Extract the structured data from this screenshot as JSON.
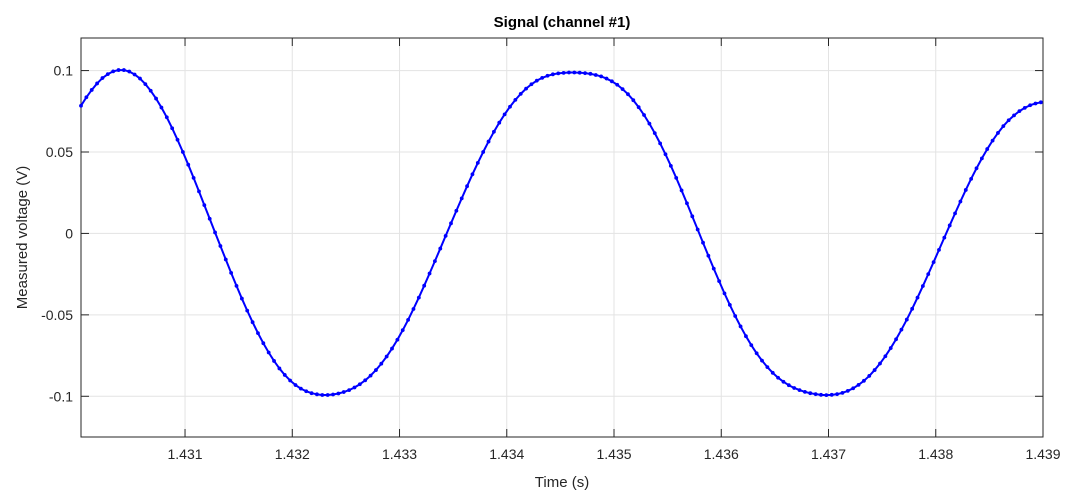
{
  "chart_data": {
    "type": "line",
    "title": "Signal (channel #1)",
    "xlabel": "Time (s)",
    "ylabel": "Measured voltage (V)",
    "xlim": [
      1.43003,
      1.439
    ],
    "ylim": [
      -0.125,
      0.12
    ],
    "xticks": [
      1.431,
      1.432,
      1.433,
      1.434,
      1.435,
      1.436,
      1.437,
      1.438,
      1.439
    ],
    "xtick_labels": [
      "1.431",
      "1.432",
      "1.433",
      "1.434",
      "1.435",
      "1.436",
      "1.437",
      "1.438",
      "1.439"
    ],
    "yticks": [
      0.1,
      0.05,
      0,
      -0.05,
      -0.1
    ],
    "ytick_labels": [
      "0.1",
      "0.05",
      "0",
      "-0.05",
      "-0.1"
    ],
    "grid": true,
    "marker": "dot",
    "line_color": "#0000ff",
    "series": [
      {
        "x": [
          1.43003,
          1.43008,
          1.43013,
          1.43018,
          1.43023,
          1.43028,
          1.43033,
          1.43038,
          1.43043,
          1.43048,
          1.43053,
          1.43058,
          1.43063,
          1.43068,
          1.43073,
          1.43078,
          1.43083,
          1.43088,
          1.43093,
          1.43098,
          1.43103,
          1.43108,
          1.43113,
          1.43118,
          1.43123,
          1.43128,
          1.43133,
          1.43138,
          1.43143,
          1.43148,
          1.43153,
          1.43158,
          1.43163,
          1.43168,
          1.43173,
          1.43178,
          1.43183,
          1.43188,
          1.43193,
          1.43198,
          1.43203,
          1.43208,
          1.43213,
          1.43218,
          1.43223,
          1.43228,
          1.43233,
          1.43238,
          1.43243,
          1.43248,
          1.43253,
          1.43258,
          1.43263,
          1.43268,
          1.43273,
          1.43278,
          1.43283,
          1.43288,
          1.43293,
          1.43298,
          1.43303,
          1.43308,
          1.43313,
          1.43318,
          1.43323,
          1.43328,
          1.43333,
          1.43338,
          1.43343,
          1.43348,
          1.43353,
          1.43358,
          1.43363,
          1.43368,
          1.43373,
          1.43378,
          1.43383,
          1.43388,
          1.43393,
          1.43398,
          1.43403,
          1.43408,
          1.43413,
          1.43418,
          1.43423,
          1.43428,
          1.43433,
          1.43438,
          1.43443,
          1.43448,
          1.43453,
          1.43458,
          1.43463,
          1.43468,
          1.43473,
          1.43478,
          1.43483,
          1.43488,
          1.43493,
          1.43498,
          1.43503,
          1.43508,
          1.43513,
          1.43518,
          1.43523,
          1.43528,
          1.43533,
          1.43538,
          1.43543,
          1.43548,
          1.43553,
          1.43558,
          1.43563,
          1.43568,
          1.43573,
          1.43578,
          1.43583,
          1.43588,
          1.43593,
          1.43598,
          1.43603,
          1.43608,
          1.43613,
          1.43618,
          1.43623,
          1.43628,
          1.43633,
          1.43638,
          1.43643,
          1.43648,
          1.43653,
          1.43658,
          1.43663,
          1.43668,
          1.43673,
          1.43678,
          1.43683,
          1.43688,
          1.43693,
          1.43698,
          1.43703,
          1.43708,
          1.43713,
          1.43718,
          1.43723,
          1.43728,
          1.43733,
          1.43738,
          1.43743,
          1.43748,
          1.43753,
          1.43758,
          1.43763,
          1.43768,
          1.43773,
          1.43778,
          1.43783,
          1.43788,
          1.43793,
          1.43798,
          1.43803,
          1.43808,
          1.43813,
          1.43818,
          1.43823,
          1.43828,
          1.43833,
          1.43838,
          1.43843,
          1.43848,
          1.43853,
          1.43858,
          1.43863,
          1.43868,
          1.43873,
          1.43878,
          1.43883,
          1.43888,
          1.43893,
          1.43898
        ],
        "y": [
          0.0784,
          0.0836,
          0.0881,
          0.0921,
          0.0954,
          0.0978,
          0.0995,
          0.1003,
          0.1003,
          0.0994,
          0.0976,
          0.0951,
          0.0917,
          0.0876,
          0.0828,
          0.0773,
          0.0713,
          0.0646,
          0.0575,
          0.05,
          0.0422,
          0.0341,
          0.0258,
          0.0174,
          0.009,
          0.0006,
          -0.0077,
          -0.016,
          -0.0242,
          -0.0322,
          -0.04,
          -0.0474,
          -0.0545,
          -0.0612,
          -0.0674,
          -0.0731,
          -0.0783,
          -0.0829,
          -0.0869,
          -0.0903,
          -0.0931,
          -0.0953,
          -0.0969,
          -0.0981,
          -0.0988,
          -0.0992,
          -0.0992,
          -0.0989,
          -0.0983,
          -0.0974,
          -0.0962,
          -0.0946,
          -0.0926,
          -0.0902,
          -0.0873,
          -0.0839,
          -0.08,
          -0.0756,
          -0.0707,
          -0.0653,
          -0.0594,
          -0.0531,
          -0.0464,
          -0.0394,
          -0.0321,
          -0.0246,
          -0.017,
          -0.0093,
          -0.0015,
          0.0062,
          0.0139,
          0.0215,
          0.029,
          0.0363,
          0.0433,
          0.05,
          0.0564,
          0.0624,
          0.068,
          0.0731,
          0.0778,
          0.082,
          0.0857,
          0.0889,
          0.0916,
          0.0938,
          0.0955,
          0.0968,
          0.0977,
          0.0983,
          0.0986,
          0.0988,
          0.0988,
          0.0987,
          0.0984,
          0.098,
          0.0973,
          0.0964,
          0.0951,
          0.0934,
          0.0913,
          0.0886,
          0.0855,
          0.0818,
          0.0775,
          0.0727,
          0.0674,
          0.0616,
          0.0553,
          0.0486,
          0.0415,
          0.0341,
          0.0264,
          0.0185,
          0.0105,
          0.0024,
          -0.0057,
          -0.0137,
          -0.0216,
          -0.0293,
          -0.0368,
          -0.0439,
          -0.0507,
          -0.0571,
          -0.0631,
          -0.0686,
          -0.0736,
          -0.0781,
          -0.0821,
          -0.0856,
          -0.0886,
          -0.0911,
          -0.0932,
          -0.0949,
          -0.0962,
          -0.0973,
          -0.0981,
          -0.0987,
          -0.0991,
          -0.0993,
          -0.0991,
          -0.0987,
          -0.0979,
          -0.0967,
          -0.0951,
          -0.093,
          -0.0905,
          -0.0875,
          -0.0839,
          -0.0799,
          -0.0754,
          -0.0704,
          -0.065,
          -0.0591,
          -0.0529,
          -0.0463,
          -0.0394,
          -0.0323,
          -0.025,
          -0.0176,
          -0.0101,
          -0.0026,
          0.0049,
          0.0123,
          0.0196,
          0.0267,
          0.0335,
          0.04,
          0.0461,
          0.0518,
          0.057,
          0.0617,
          0.0659,
          0.0695,
          0.0725,
          0.0751,
          0.0771,
          0.0787,
          0.0798,
          0.0805
        ]
      }
    ]
  }
}
